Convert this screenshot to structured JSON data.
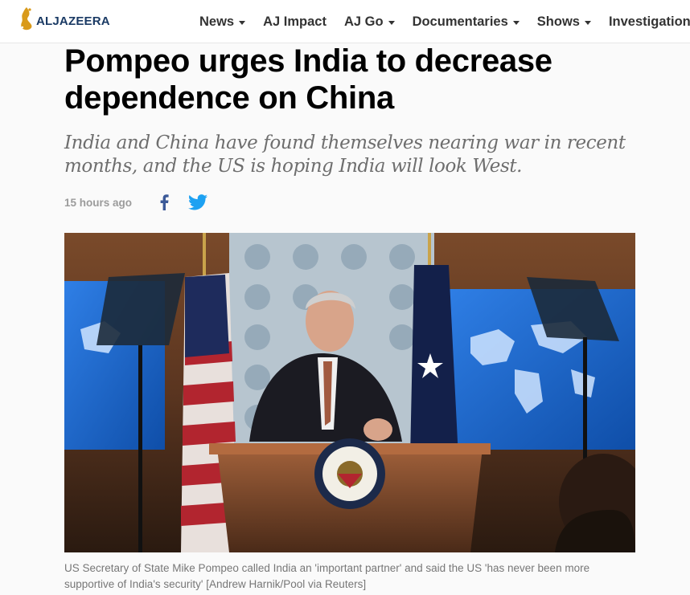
{
  "header": {
    "logo_text": "ALJAZEERA",
    "logo_icon": "aljazeera-calligraphy-logo",
    "nav": [
      {
        "label": "News",
        "dropdown": true
      },
      {
        "label": "AJ Impact",
        "dropdown": false
      },
      {
        "label": "AJ Go",
        "dropdown": true
      },
      {
        "label": "Documentaries",
        "dropdown": true
      },
      {
        "label": "Shows",
        "dropdown": true
      },
      {
        "label": "Investigations",
        "dropdown": false
      }
    ]
  },
  "article": {
    "headline": "Pompeo urges India to decrease dependence on China",
    "subheadline": "India and China have found themselves nearing war in recent months, and the US is hoping India will look West.",
    "timestamp": "15 hours ago",
    "share": {
      "facebook_icon": "facebook-icon",
      "twitter_icon": "twitter-icon"
    },
    "image": {
      "icon": "press-briefing-photo"
    },
    "caption": "US Secretary of State Mike Pompeo called India an 'important partner' and said the US 'has never been more supportive of India's security' [Andrew Harnik/Pool via Reuters]"
  },
  "colors": {
    "logo_gold": "#d99a1b",
    "logo_text": "#1a3a64",
    "facebook": "#3b5998",
    "twitter": "#1da1f2",
    "subhead": "#6e6e6e",
    "caption": "#777777"
  }
}
